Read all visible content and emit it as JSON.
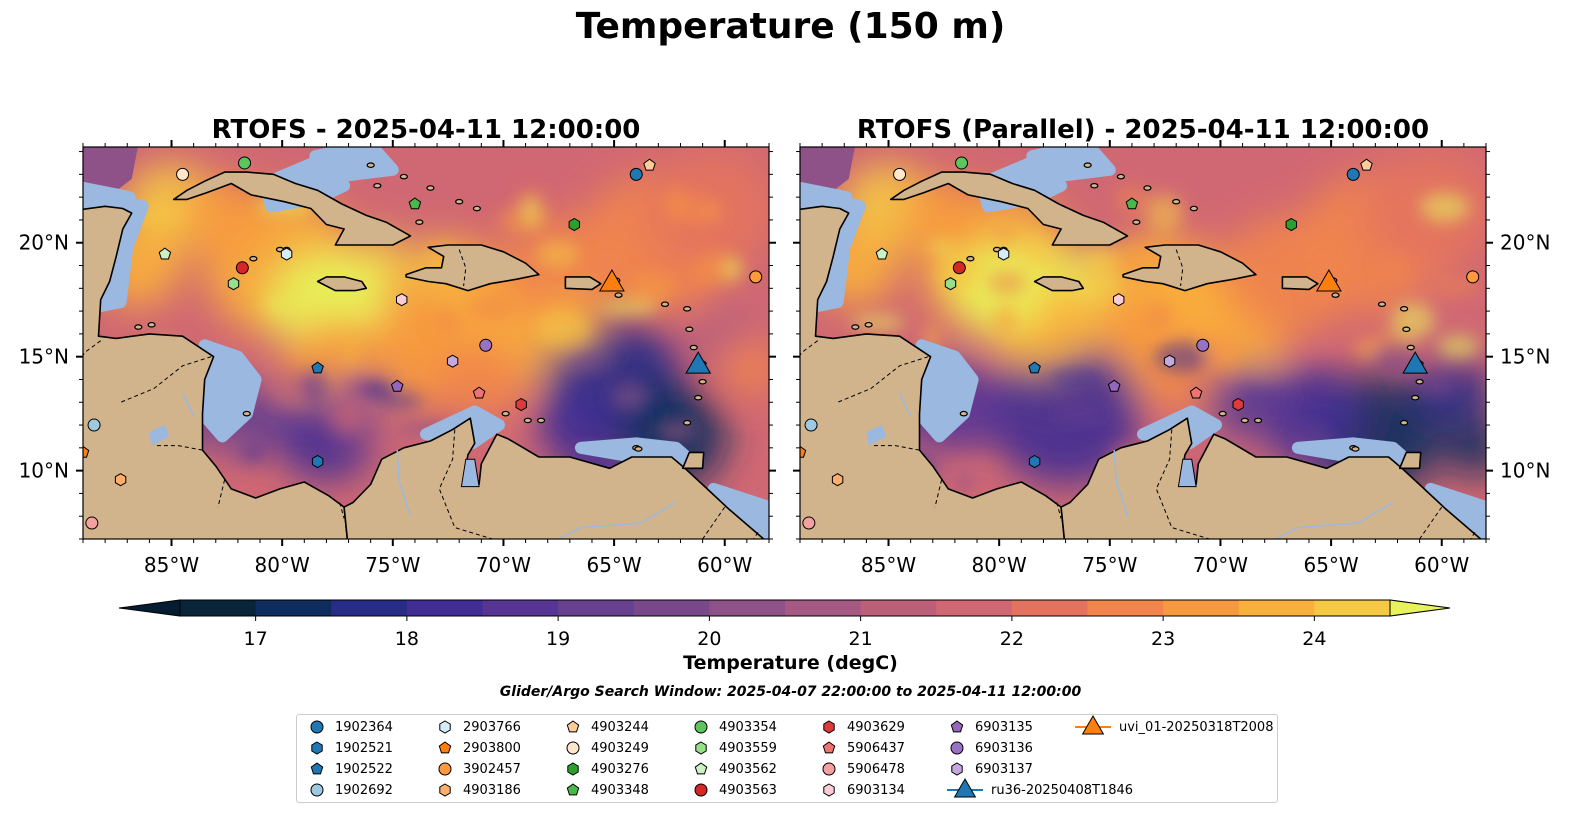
{
  "title": "Temperature (150 m)",
  "panels": [
    {
      "title": "RTOFS - 2025-04-11 12:00:00",
      "variant": "rtofs"
    },
    {
      "title": "RTOFS (Parallel) - 2025-04-11 12:00:00",
      "variant": "parallel"
    }
  ],
  "map": {
    "lon_range": [
      -89,
      -58
    ],
    "lat_range": [
      7,
      24.2
    ],
    "lon_ticks": [
      {
        "value": -85,
        "label": "85°W"
      },
      {
        "value": -80,
        "label": "80°W"
      },
      {
        "value": -75,
        "label": "75°W"
      },
      {
        "value": -70,
        "label": "70°W"
      },
      {
        "value": -65,
        "label": "65°W"
      },
      {
        "value": -60,
        "label": "60°W"
      }
    ],
    "lat_ticks": [
      {
        "value": 20,
        "label": "20°N"
      },
      {
        "value": 15,
        "label": "15°N"
      },
      {
        "value": 10,
        "label": "10°N"
      }
    ],
    "colors": {
      "land": "#d2b48c",
      "shelf": "#9ab8e0",
      "deep": "#08253a"
    }
  },
  "colorbar": {
    "label": "Temperature (degC)",
    "min": 16.5,
    "max": 24.5,
    "step": 0.5,
    "ticks": [
      "17",
      "18",
      "19",
      "20",
      "21",
      "22",
      "23",
      "24"
    ],
    "colors": [
      "#08253a",
      "#0e2d5e",
      "#272d86",
      "#412d93",
      "#573595",
      "#674090",
      "#79498c",
      "#8e5288",
      "#a65a83",
      "#bc607a",
      "#d06873",
      "#e3735f",
      "#f1854c",
      "#f79a3f",
      "#f9b03c",
      "#f5c944",
      "#e8f25a"
    ],
    "extend_low": "#061c30",
    "extend_high": "#e8f25a"
  },
  "search_window": "Glider/Argo Search Window: 2025-04-07 22:00:00 to 2025-04-11 12:00:00",
  "legend": [
    {
      "label": "1902364",
      "marker": "circle",
      "color": "#1f77b4",
      "lon": -64.0,
      "lat": 23.0
    },
    {
      "label": "1902521",
      "marker": "hexagon",
      "color": "#1f77b4",
      "lon": -78.4,
      "lat": 10.4
    },
    {
      "label": "1902522",
      "marker": "pentagon",
      "color": "#1f77b4",
      "lon": -78.4,
      "lat": 14.5
    },
    {
      "label": "1902692",
      "marker": "circle",
      "color": "#9ecae1",
      "lon": -88.5,
      "lat": 12.0
    },
    {
      "label": "2903766",
      "marker": "hexagon",
      "color": "#d6ecf7",
      "lon": -79.8,
      "lat": 19.5
    },
    {
      "label": "2903800",
      "marker": "pentagon",
      "color": "#ff7f0e",
      "lon": -89.0,
      "lat": 10.8
    },
    {
      "label": "3902457",
      "marker": "circle",
      "color": "#ff9a3c",
      "lon": -58.6,
      "lat": 18.5
    },
    {
      "label": "4903186",
      "marker": "hexagon",
      "color": "#ffae6b",
      "lon": -87.3,
      "lat": 9.6
    },
    {
      "label": "4903244",
      "marker": "pentagon",
      "color": "#ffcc99",
      "lon": -63.4,
      "lat": 23.4
    },
    {
      "label": "4903249",
      "marker": "circle",
      "color": "#ffe7cc",
      "lon": -84.5,
      "lat": 23.0
    },
    {
      "label": "4903276",
      "marker": "hexagon",
      "color": "#2ca02c",
      "lon": -66.8,
      "lat": 20.8
    },
    {
      "label": "4903348",
      "marker": "pentagon",
      "color": "#4cb84c",
      "lon": -74.0,
      "lat": 21.7
    },
    {
      "label": "4903354",
      "marker": "circle",
      "color": "#5cc65c",
      "lon": -81.7,
      "lat": 23.5
    },
    {
      "label": "4903559",
      "marker": "hexagon",
      "color": "#98df8a",
      "lon": -82.2,
      "lat": 18.2
    },
    {
      "label": "4903562",
      "marker": "pentagon",
      "color": "#ccf2c4",
      "lon": -85.3,
      "lat": 19.5
    },
    {
      "label": "4903563",
      "marker": "circle",
      "color": "#d62728",
      "lon": -81.8,
      "lat": 18.9
    },
    {
      "label": "4903629",
      "marker": "hexagon",
      "color": "#dd3b3b",
      "lon": -69.2,
      "lat": 12.9
    },
    {
      "label": "5906437",
      "marker": "pentagon",
      "color": "#f07373",
      "lon": -71.1,
      "lat": 13.4
    },
    {
      "label": "5906478",
      "marker": "circle",
      "color": "#f4a0a0",
      "lon": -88.6,
      "lat": 7.7
    },
    {
      "label": "6903134",
      "marker": "hexagon",
      "color": "#f9cdd6",
      "lon": -74.6,
      "lat": 17.5
    },
    {
      "label": "6903135",
      "marker": "pentagon",
      "color": "#9467bd",
      "lon": -74.8,
      "lat": 13.7
    },
    {
      "label": "6903136",
      "marker": "circle",
      "color": "#9a72c4",
      "lon": -70.8,
      "lat": 15.5
    },
    {
      "label": "6903137",
      "marker": "hexagon",
      "color": "#c5a8e0",
      "lon": -72.3,
      "lat": 14.8
    },
    {
      "label": "ru36-20250408T1846",
      "marker": "triangle",
      "color": "#1f77b4",
      "lon": -61.2,
      "lat": 14.5
    },
    {
      "label": "uvi_01-20250318T2008",
      "marker": "triangle",
      "color": "#ff7f0e",
      "lon": -65.1,
      "lat": 18.1
    }
  ]
}
